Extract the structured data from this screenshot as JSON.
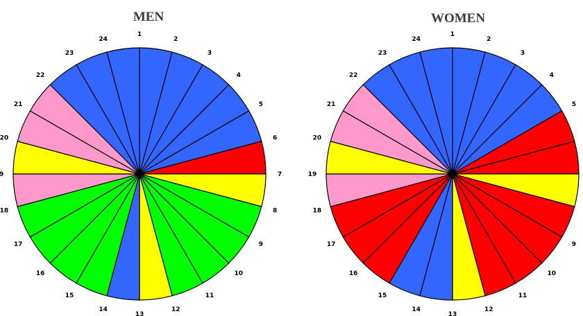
{
  "colors": {
    "blue": "#3366ff",
    "pink": "#ff99cc",
    "red": "#ff0000",
    "yellow": "#ffff00",
    "green": "#00ff00",
    "hub": "#000000",
    "outline": "#000000"
  },
  "chart_data": [
    {
      "type": "pie",
      "title": "MEN",
      "categories": [
        "1",
        "2",
        "3",
        "4",
        "5",
        "6",
        "7",
        "8",
        "9",
        "10",
        "11",
        "12",
        "13",
        "14",
        "15",
        "16",
        "17",
        "18",
        "19",
        "20",
        "21",
        "22",
        "23",
        "24"
      ],
      "slice_colors": [
        "blue",
        "blue",
        "blue",
        "blue",
        "blue",
        "red",
        "yellow",
        "green",
        "green",
        "green",
        "green",
        "yellow",
        "blue",
        "green",
        "green",
        "green",
        "green",
        "pink",
        "yellow",
        "pink",
        "pink",
        "blue",
        "blue",
        "blue"
      ]
    },
    {
      "type": "pie",
      "title": "WOMEN",
      "categories": [
        "1",
        "2",
        "3",
        "4",
        "5",
        "6",
        "7",
        "8",
        "9",
        "10",
        "11",
        "12",
        "13",
        "14",
        "15",
        "16",
        "17",
        "18",
        "19",
        "20",
        "21",
        "22",
        "23",
        "24"
      ],
      "slice_colors": [
        "blue",
        "blue",
        "blue",
        "blue",
        "red",
        "red",
        "yellow",
        "red",
        "red",
        "red",
        "red",
        "yellow",
        "blue",
        "blue",
        "red",
        "red",
        "red",
        "pink",
        "yellow",
        "pink",
        "pink",
        "blue",
        "blue",
        "blue"
      ]
    }
  ]
}
